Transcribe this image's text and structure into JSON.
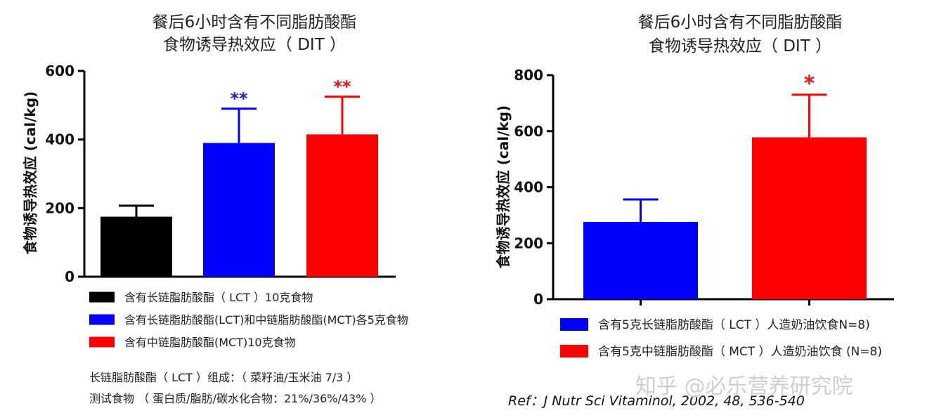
{
  "chart_data": [
    {
      "type": "bar",
      "title": "餐后6小时含有不同脂肪酸酯",
      "subtitle": "食物诱导热效应（ DIT ）",
      "ylabel": "食物诱导热效应 (cal/kg)",
      "ylim": [
        0,
        600
      ],
      "yticks": [
        0,
        200,
        400,
        600
      ],
      "grid": false,
      "legend_position": "bottom",
      "series": [
        {
          "name": "含有长链脂肪酸酯（ LCT ）10克食物",
          "value": 175,
          "error": 32,
          "color": "#000000",
          "marker": ""
        },
        {
          "name": "含有长链脂肪酸酯(LCT)和中链脂肪酸酯(MCT)各5克食物",
          "value": 390,
          "error": 100,
          "color": "#0000ff",
          "marker": "**",
          "marker_color": "#2222cc"
        },
        {
          "name": "含有中链脂肪酸酯(MCT)10克食物",
          "value": 415,
          "error": 110,
          "color": "#ff0000",
          "marker": "**",
          "marker_color": "#ee1111"
        }
      ]
    },
    {
      "type": "bar",
      "title": "餐后6小时含有不同脂肪酸酯",
      "subtitle": "食物诱导热效应（ DIT ）",
      "ylabel": "食物诱导热效应 (cal/kg)",
      "ylim": [
        0,
        800
      ],
      "yticks": [
        0,
        200,
        400,
        600,
        800
      ],
      "grid": false,
      "legend_position": "bottom",
      "series": [
        {
          "name": "含有5克长链脂肪酸酯（ LCT ）人造奶油饮食N=8)",
          "value": 276,
          "error": 80,
          "color": "#0000ff",
          "marker": ""
        },
        {
          "name": "含有5克中链脂肪酸酯（ MCT ）人造奶油饮食 (N=8)",
          "value": 578,
          "error": 152,
          "color": "#ff0000",
          "marker": "*",
          "marker_color": "#ee1111"
        }
      ]
    }
  ],
  "notes": {
    "lct_composition": "长链脂肪酸酯（ LCT ）组成：（ 菜籽油/玉米油 7/3 ）",
    "test_food": "测试食物 （ 蛋白质/脂肪/碳水化合物：21%/36%/43% ）"
  },
  "reference": "Ref：J Nutr Sci Vitaminol, 2002, 48, 536-540",
  "watermark": "知乎 @必乐营养研究院"
}
